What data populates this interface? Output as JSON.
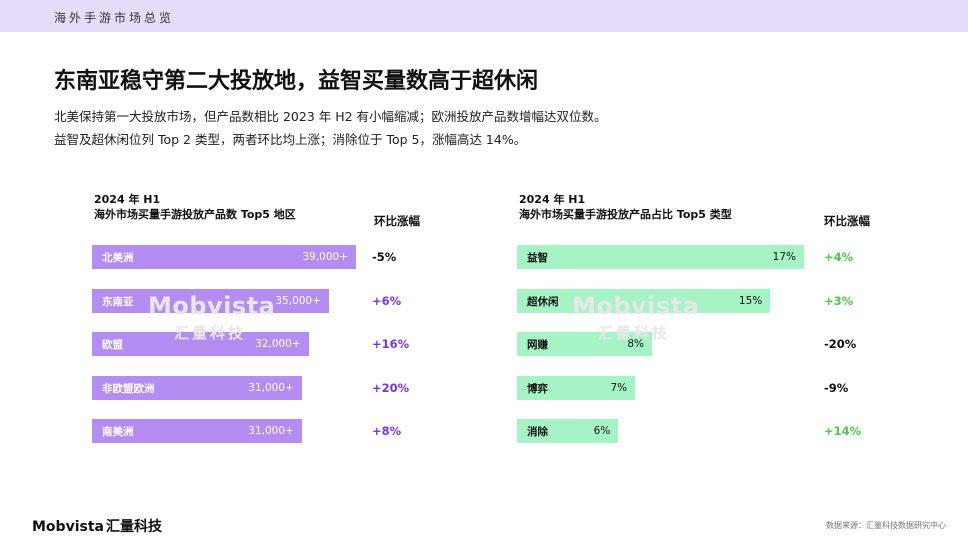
{
  "header": {
    "title": "海外手游市场总览"
  },
  "headline": "东南亚稳守第二大投放地，益智买量数高于超休闲",
  "subtitle_lines": [
    "北美保持第一大投放市场，但产品数相比 2023 年 H2 有小幅缩减；欧洲投放产品数增幅达双位数。",
    "益智及超休闲位列 Top 2 类型，两者环比均上涨；消除位于 Top 5，涨幅高达 14%。"
  ],
  "watermark": {
    "main": "Mobvista",
    "sub": "汇量科技"
  },
  "footer": {
    "logo_en": "Mobvista",
    "logo_cn": "汇量科技",
    "source": "数据来源：汇量科技数据研究中心"
  },
  "colors": {
    "accent": "#b48cf2",
    "bar_left": "#b48cf2",
    "bar_right": "#a6f4c5",
    "positive_left": "#7a33f0",
    "positive_right": "#4cc94c",
    "negative": "#111111"
  },
  "chart_data": [
    {
      "type": "bar",
      "orientation": "horizontal",
      "title_line1": "2024 年 H1",
      "title_line2": "海外市场买量手游投放产品数 Top5 地区",
      "change_header": "环比涨幅",
      "categories": [
        "北美洲",
        "东南亚",
        "欧盟",
        "非欧盟欧洲",
        "南美洲"
      ],
      "values": [
        39000,
        35000,
        32000,
        31000,
        31000
      ],
      "value_labels": [
        "39,000+",
        "35,000+",
        "32,000+",
        "31,000+",
        "31,000+"
      ],
      "changes": [
        "-5%",
        "+6%",
        "+16%",
        "+20%",
        "+8%"
      ],
      "xlim": [
        0,
        39000
      ]
    },
    {
      "type": "bar",
      "orientation": "horizontal",
      "title_line1": "2024 年 H1",
      "title_line2": "海外市场买量手游投放产品占比 Top5 类型",
      "change_header": "环比涨幅",
      "categories": [
        "益智",
        "超休闲",
        "网赚",
        "博弈",
        "消除"
      ],
      "values": [
        17,
        15,
        8,
        7,
        6
      ],
      "value_labels": [
        "17%",
        "15%",
        "8%",
        "7%",
        "6%"
      ],
      "changes": [
        "+4%",
        "+3%",
        "-20%",
        "-9%",
        "+14%"
      ],
      "xlim": [
        0,
        17
      ]
    }
  ]
}
